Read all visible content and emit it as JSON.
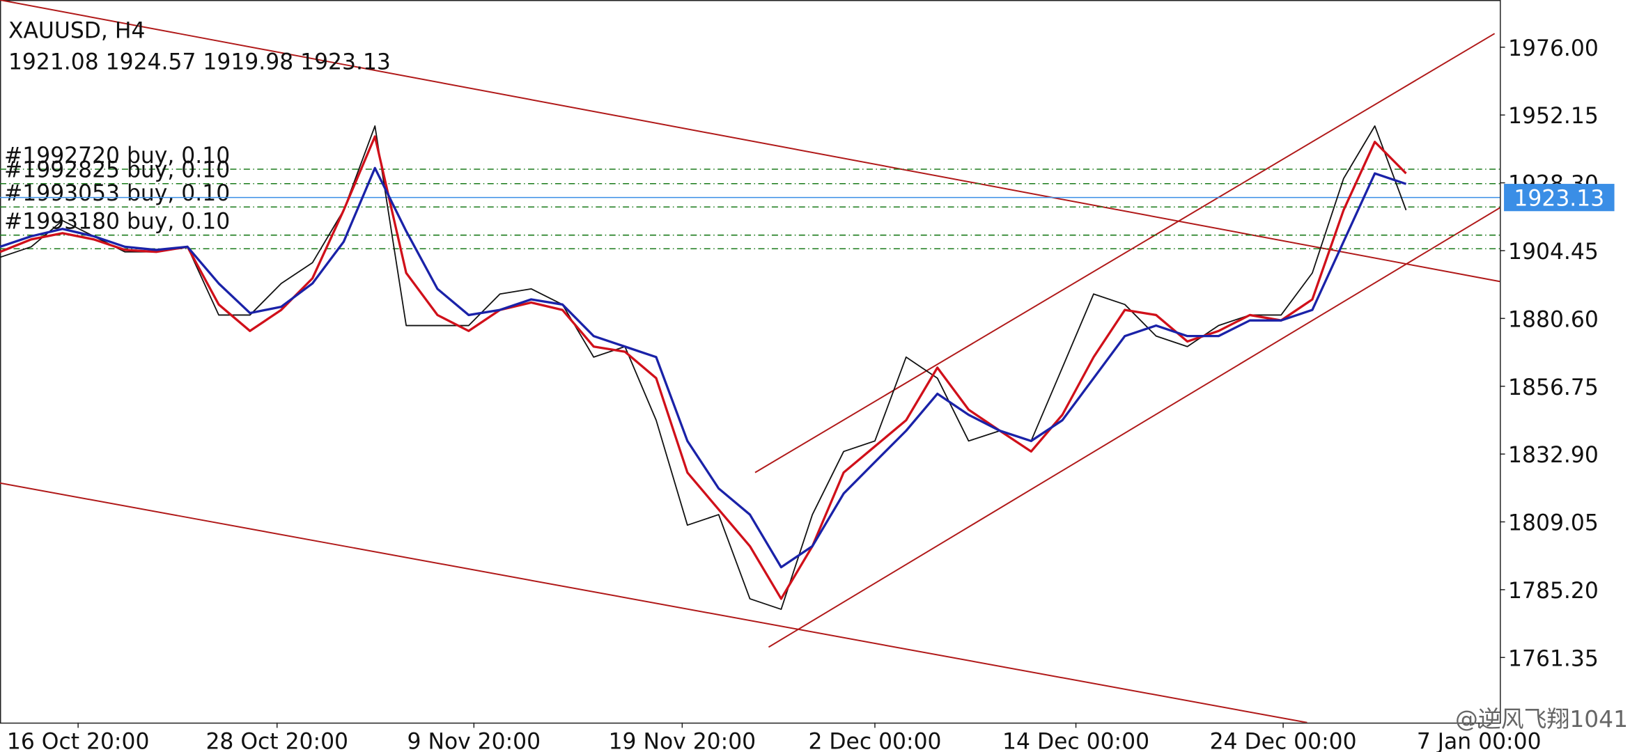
{
  "chart_data": {
    "type": "line",
    "title": "XAUUSD, H4",
    "subtitle": "1921.08 1924.57 1919.98 1923.13",
    "watermark": "@逆风飞翔1041",
    "xlim": [
      0,
      144
    ],
    "xticks": [
      {
        "value": 7.5,
        "label": "16 Oct 20:00"
      },
      {
        "value": 26.6,
        "label": "28 Oct 20:00"
      },
      {
        "value": 45.5,
        "label": "9 Nov 20:00"
      },
      {
        "value": 65.5,
        "label": "19 Nov 20:00"
      },
      {
        "value": 84,
        "label": "2 Dec 00:00"
      },
      {
        "value": 103.3,
        "label": "14 Dec 00:00"
      },
      {
        "value": 123.2,
        "label": "24 Dec 00:00"
      },
      {
        "value": 142,
        "label": "7 Jan 00:00"
      }
    ],
    "ylim": [
      1738.45,
      1992.6
    ],
    "yticks": [
      1761.35,
      {
        "value": 1785.2,
        "label": "1785.20"
      },
      1809.05,
      {
        "value": 1832.9,
        "label": "1832.90"
      },
      1856.75,
      {
        "value": 1880.6,
        "label": "1880.60"
      },
      1904.45,
      {
        "value": 1928.3,
        "label": "1928.30"
      },
      1952.15,
      {
        "value": 1976,
        "label": "1976.00"
      }
    ],
    "x": [
      0,
      3,
      6,
      9,
      12,
      15,
      18,
      21,
      24,
      27,
      30,
      33,
      36,
      39,
      42,
      45,
      48,
      51,
      54,
      57,
      60,
      63,
      66,
      69,
      72,
      75,
      78,
      81,
      84,
      87,
      90,
      93,
      96,
      99,
      102,
      105,
      108,
      111,
      114,
      117,
      120,
      123,
      126,
      129,
      132,
      135
    ],
    "series": [
      {
        "color": "#111111",
        "values": [
          1902.1,
          1905.8,
          1915.0,
          1909.5,
          1904.0,
          1904.0,
          1905.8,
          1881.8,
          1881.8,
          1892.9,
          1900.2,
          1918.7,
          1948.3,
          1878.1,
          1878.1,
          1878.1,
          1889.2,
          1891.0,
          1885.5,
          1867.0,
          1870.7,
          1844.8,
          1807.9,
          1811.6,
          1782.0,
          1778.3,
          1811.6,
          1833.8,
          1837.5,
          1867.0,
          1859.6,
          1837.5,
          1841.1,
          1837.5,
          1863.3,
          1889.2,
          1885.5,
          1874.4,
          1870.7,
          1878.1,
          1881.8,
          1881.8,
          1896.6,
          1929.8,
          1948.3,
          1918.7
        ]
      },
      {
        "color": "#d0101a",
        "values": [
          1904.0,
          1908.4,
          1910.6,
          1908.4,
          1904.7,
          1904.0,
          1905.8,
          1885.5,
          1876.2,
          1883.6,
          1894.7,
          1918.7,
          1944.6,
          1896.6,
          1881.8,
          1876.2,
          1883.6,
          1886.2,
          1883.6,
          1870.7,
          1868.9,
          1859.6,
          1826.4,
          1813.4,
          1800.5,
          1782.0,
          1800.5,
          1826.4,
          1835.6,
          1844.8,
          1863.3,
          1848.5,
          1841.1,
          1833.8,
          1846.7,
          1867.0,
          1883.6,
          1881.8,
          1872.5,
          1876.2,
          1881.8,
          1879.9,
          1887.3,
          1918.7,
          1942.7,
          1931.6
        ]
      },
      {
        "color": "#1a22a8",
        "values": [
          1905.8,
          1909.5,
          1912.1,
          1909.5,
          1905.8,
          1904.7,
          1905.8,
          1892.9,
          1882.5,
          1884.7,
          1892.9,
          1907.6,
          1933.5,
          1911.3,
          1891.0,
          1881.8,
          1883.6,
          1887.3,
          1885.5,
          1874.4,
          1870.7,
          1867.0,
          1837.5,
          1820.8,
          1811.6,
          1793.1,
          1800.5,
          1819.0,
          1830.1,
          1841.1,
          1854.1,
          1846.7,
          1841.1,
          1837.5,
          1844.8,
          1859.6,
          1874.4,
          1878.1,
          1874.4,
          1874.4,
          1879.9,
          1879.9,
          1883.6,
          1907.6,
          1931.6,
          1927.9
        ]
      }
    ],
    "trendlines": [
      {
        "x": [
          0,
          144
        ],
        "price": [
          1992.6,
          1893.6
        ]
      },
      {
        "x": [
          0,
          125.5
        ],
        "price": [
          1822.7,
          1738.45
        ]
      },
      {
        "x": [
          72.5,
          143.5
        ],
        "price": [
          1826.4,
          1980.8
        ]
      },
      {
        "x": [
          73.8,
          144
        ],
        "price": [
          1765.0,
          1919.5
        ]
      }
    ],
    "trendline_color": "#b01818",
    "last_price": 1923.13,
    "last_price_color": "#3a8ee6",
    "orders": [
      {
        "label": "#1992720 buy, 0.10",
        "price": 1933.1
      },
      {
        "label": "#1992825 buy, 0.10",
        "price": 1928.0
      },
      {
        "label": "#1993053 buy, 0.10",
        "price": 1919.8
      },
      {
        "label": "#1993180 buy, 0.10",
        "price": 1909.9
      },
      {
        "price": 1905.1
      }
    ],
    "order_color": "#1a7a1a",
    "grid": false
  }
}
